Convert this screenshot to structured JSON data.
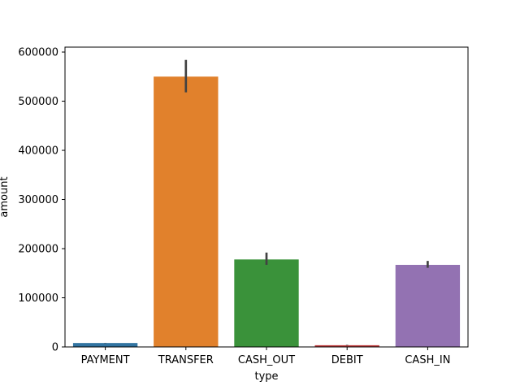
{
  "chart_data": {
    "type": "bar",
    "xlabel": "type",
    "ylabel": "amount",
    "categories": [
      "PAYMENT",
      "TRANSFER",
      "CASH_OUT",
      "DEBIT",
      "CASH_IN"
    ],
    "values": [
      8000,
      550000,
      178000,
      3500,
      167000
    ],
    "error_bars": [
      [
        7700,
        8300
      ],
      [
        518000,
        584000
      ],
      [
        167000,
        192000
      ],
      [
        3000,
        4200
      ],
      [
        161000,
        175000
      ]
    ],
    "colors": [
      "#3274a1",
      "#e1812c",
      "#3a923a",
      "#c03d3e",
      "#9372b2"
    ],
    "error_bar_color": "#424242",
    "ylim": [
      0,
      610000
    ],
    "yticks": [
      0,
      100000,
      200000,
      300000,
      400000,
      500000,
      600000
    ],
    "ytick_labels": [
      "0",
      "100000",
      "200000",
      "300000",
      "400000",
      "500000",
      "600000"
    ],
    "grid": false,
    "legend": "none"
  }
}
